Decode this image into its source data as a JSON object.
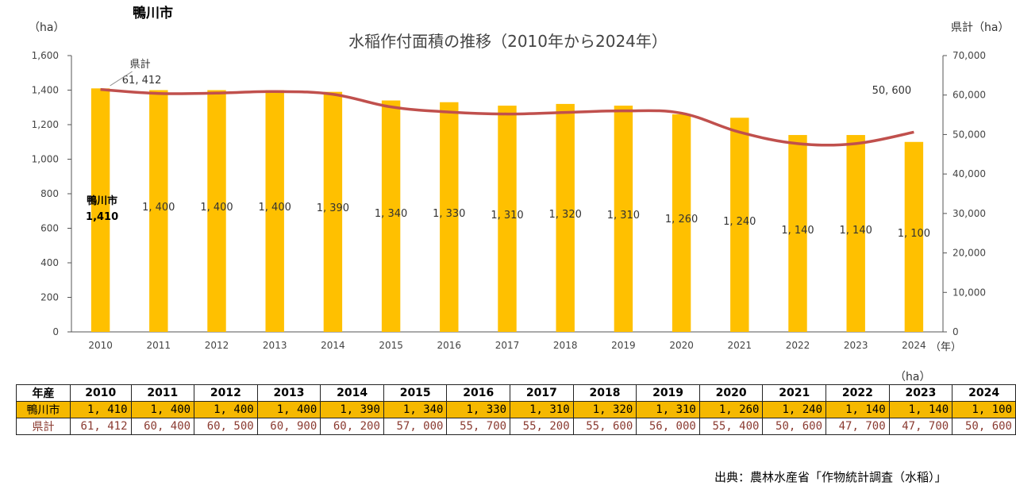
{
  "city_title": "鴨川市",
  "chart_data": {
    "type": "bar",
    "title": "水稲作付面積の推移（2010年から2024年）",
    "categories": [
      "2010",
      "2011",
      "2012",
      "2013",
      "2014",
      "2015",
      "2016",
      "2017",
      "2018",
      "2019",
      "2020",
      "2021",
      "2022",
      "2023",
      "2024"
    ],
    "series": [
      {
        "name": "鴨川市",
        "type": "bar",
        "axis": "left",
        "color": "#FFC000",
        "values": [
          1410,
          1400,
          1400,
          1400,
          1390,
          1340,
          1330,
          1310,
          1320,
          1310,
          1260,
          1240,
          1140,
          1140,
          1100
        ],
        "value_labels": [
          "1,410",
          "1,400",
          "1,400",
          "1,400",
          "1,390",
          "1,340",
          "1,330",
          "1,310",
          "1,320",
          "1,310",
          "1,260",
          "1,240",
          "1,140",
          "1,140",
          "1,100"
        ]
      },
      {
        "name": "県計",
        "type": "line",
        "axis": "right",
        "color": "#C0504D",
        "values": [
          61412,
          60400,
          60500,
          60900,
          60200,
          57000,
          55700,
          55200,
          55600,
          56000,
          55400,
          50600,
          47700,
          47700,
          50600
        ]
      }
    ],
    "ylabel_left": "（ha）",
    "ylabel_right": "県計（ha）",
    "xlabel": "（年）",
    "ylim_left": [
      0,
      1600
    ],
    "yticks_left": [
      0,
      200,
      400,
      600,
      800,
      1000,
      1200,
      1400,
      1600
    ],
    "ytick_labels_left": [
      "0",
      "200",
      "400",
      "600",
      "800",
      "1,000",
      "1,200",
      "1,400",
      "1,600"
    ],
    "ylim_right": [
      0,
      70000
    ],
    "yticks_right": [
      0,
      10000,
      20000,
      30000,
      40000,
      50000,
      60000,
      70000
    ],
    "ytick_labels_right": [
      "0",
      "10,000",
      "20,000",
      "30,000",
      "40,000",
      "50,000",
      "60,000",
      "70,000"
    ],
    "annotations": {
      "first_bar_series": "鴨川市",
      "first_bar_value": "1,410",
      "line_start_name": "県計",
      "line_start_value": "61,412",
      "line_end_value": "50,600"
    }
  },
  "table": {
    "unit": "（ha）",
    "header_label": "年産",
    "years": [
      "2010",
      "2011",
      "2012",
      "2013",
      "2014",
      "2015",
      "2016",
      "2017",
      "2018",
      "2019",
      "2020",
      "2021",
      "2022",
      "2023",
      "2024"
    ],
    "rows": [
      {
        "label": "鴨川市",
        "values": [
          "1,410",
          "1,400",
          "1,400",
          "1,400",
          "1,390",
          "1,340",
          "1,330",
          "1,310",
          "1,320",
          "1,310",
          "1,260",
          "1,240",
          "1,140",
          "1,140",
          "1,100"
        ]
      },
      {
        "label": "県計",
        "values": [
          "61,412",
          "60,400",
          "60,500",
          "60,900",
          "60,200",
          "57,000",
          "55,700",
          "55,200",
          "55,600",
          "56,000",
          "55,400",
          "50,600",
          "47,700",
          "47,700",
          "50,600"
        ]
      }
    ]
  },
  "source": "出典：農林水産省「作物統計調査（水稲）」"
}
